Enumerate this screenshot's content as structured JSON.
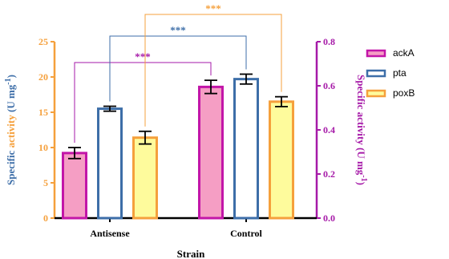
{
  "chart_data": {
    "type": "bar",
    "categories": [
      "Antisense",
      "Control"
    ],
    "xlabel": "Strain",
    "ylabel_left": {
      "prefix": "Specific ",
      "highlight": "activity",
      "suffix": " (U mg",
      "sup": "-1",
      "end": ")"
    },
    "ylabel_right": {
      "prefix": "Specific activity (U mg",
      "sup": "-1",
      "end": ")"
    },
    "ylim_left": [
      0,
      25
    ],
    "ylim_right": [
      0,
      0.8
    ],
    "left_ticks": [
      "0",
      "5",
      "10",
      "15",
      "20",
      "25"
    ],
    "right_ticks": [
      "0.0",
      "0.2",
      "0.4",
      "0.6",
      "0.8"
    ],
    "series": [
      {
        "name": "ackA",
        "axis": "right",
        "values": [
          0.295,
          0.595
        ],
        "errors": [
          0.025,
          0.03
        ],
        "fill": "#f59ec4",
        "stroke": "#c216a8"
      },
      {
        "name": "pta",
        "axis": "left",
        "values": [
          15.5,
          19.7
        ],
        "errors": [
          0.35,
          0.7
        ],
        "fill": "#ffffff",
        "stroke": "#3d6ea8"
      },
      {
        "name": "poxB",
        "axis": "left",
        "values": [
          11.4,
          16.5
        ],
        "errors": [
          0.9,
          0.7
        ],
        "fill": "#fefb9c",
        "stroke": "#f5a03c"
      }
    ],
    "significance": [
      {
        "label": "***",
        "from": "ackA-Antisense",
        "to": "ackA-Control",
        "color": "#a61aa8"
      },
      {
        "label": "***",
        "from": "pta-Antisense",
        "to": "pta-Control",
        "color": "#3d6ea8"
      },
      {
        "label": "***",
        "from": "poxB-Antisense",
        "to": "poxB-Control",
        "color": "#f5a03c"
      }
    ],
    "colors": {
      "left_axis": "#f5a03c",
      "right_axis": "#a61aa8",
      "ylabel_left": "#3d6ea8",
      "highlight": "#f5a03c"
    }
  }
}
